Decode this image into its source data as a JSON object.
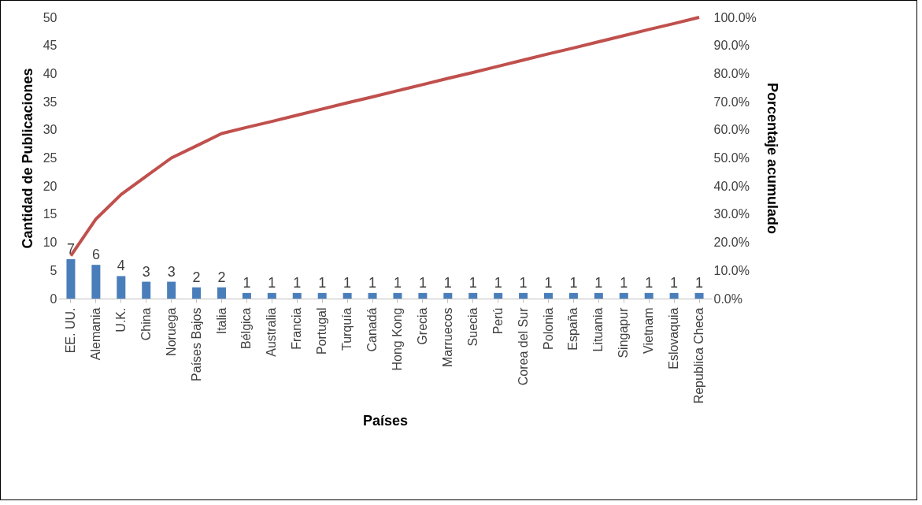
{
  "chart_data": {
    "type": "bar",
    "xlabel": "Países",
    "ylabel": "Cantidad de Publicaciones",
    "y2label": "Porcentaje acumulado",
    "categories": [
      "EE. UU.",
      "Alemania",
      "U.K.",
      "China",
      "Noruega",
      "Países Bajos",
      "Italia",
      "Bélgica",
      "Australia",
      "Francia",
      "Portugal",
      "Turquía",
      "Canadá",
      "Hong Kong",
      "Grecia",
      "Marruecos",
      "Suecia",
      "Perú",
      "Corea del Sur",
      "Polonia",
      "España",
      "Lituania",
      "Singapur",
      "Vietnam",
      "Eslovaquia",
      "Republica Checa"
    ],
    "series": [
      {
        "color": "#4a7ebb",
        "values": [
          7,
          6,
          4,
          3,
          3,
          2,
          2,
          1,
          1,
          1,
          1,
          1,
          1,
          1,
          1,
          1,
          1,
          1,
          1,
          1,
          1,
          1,
          1,
          1,
          1,
          1
        ],
        "value_labels": [
          "7",
          "6",
          "4",
          "3",
          "3",
          "2",
          "2",
          "1",
          "1",
          "1",
          "1",
          "1",
          "1",
          "1",
          "1",
          "1",
          "1",
          "1",
          "1",
          "1",
          "1",
          "1",
          "1",
          "1",
          "1",
          "1"
        ]
      },
      {
        "type": "line",
        "axis": "y2",
        "color": "#c0504d",
        "values": [
          15.2,
          28.3,
          37.0,
          43.5,
          50.0,
          54.3,
          58.7,
          60.9,
          63.0,
          65.2,
          67.4,
          69.6,
          71.7,
          73.9,
          76.1,
          78.3,
          80.4,
          82.6,
          84.8,
          87.0,
          89.1,
          91.3,
          93.5,
          95.7,
          97.8,
          100.0
        ]
      }
    ],
    "ylim": [
      0,
      50
    ],
    "yticks": [
      0,
      5,
      10,
      15,
      20,
      25,
      30,
      35,
      40,
      45,
      50
    ],
    "y2lim": [
      0,
      100
    ],
    "y2ticks": [
      {
        "value": 0,
        "label": "0.0%"
      },
      {
        "value": 10,
        "label": "10.0%"
      },
      {
        "value": 20,
        "label": "20.0%"
      },
      {
        "value": 30,
        "label": "30.0%"
      },
      {
        "value": 40,
        "label": "40.0%"
      },
      {
        "value": 50,
        "label": "50.0%"
      },
      {
        "value": 60,
        "label": "60.0%"
      },
      {
        "value": 70,
        "label": "70.0%"
      },
      {
        "value": 80,
        "label": "80.0%"
      },
      {
        "value": 90,
        "label": "90.0%"
      },
      {
        "value": 100,
        "label": "100.0%"
      }
    ]
  }
}
